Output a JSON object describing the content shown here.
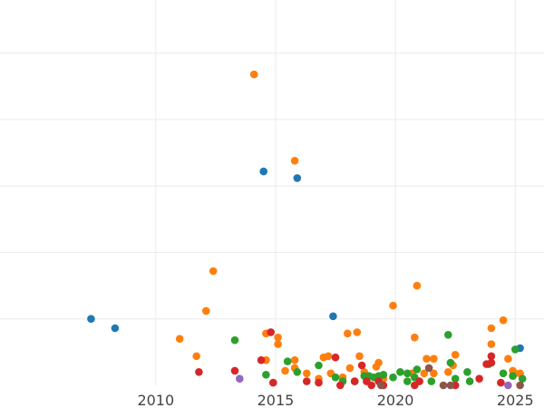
{
  "chart_data": {
    "type": "scatter",
    "title": "",
    "xlabel": "",
    "ylabel": "",
    "xlim": [
      2003.5,
      2026.2
    ],
    "ylim": [
      0,
      29
    ],
    "x_ticks": [
      2010,
      2015,
      2020,
      2025
    ],
    "x_tick_labels": [
      "2010",
      "2015",
      "2020",
      "2025"
    ],
    "y_gridlines": [
      5,
      10,
      15,
      20,
      25
    ],
    "grid": true,
    "legend": "none",
    "series": [
      {
        "color": "#1f77b4",
        "points": [
          [
            2007.3,
            5.0
          ],
          [
            2008.3,
            4.3
          ],
          [
            2014.5,
            16.1
          ],
          [
            2015.9,
            15.6
          ],
          [
            2017.4,
            5.2
          ],
          [
            2025.2,
            2.8
          ]
        ]
      },
      {
        "color": "#ff7f0e",
        "points": [
          [
            2011.0,
            3.5
          ],
          [
            2011.7,
            2.2
          ],
          [
            2012.1,
            5.6
          ],
          [
            2012.4,
            8.6
          ],
          [
            2014.1,
            23.4
          ],
          [
            2014.6,
            3.9
          ],
          [
            2014.6,
            1.9
          ],
          [
            2015.1,
            3.1
          ],
          [
            2015.1,
            3.6
          ],
          [
            2015.4,
            1.1
          ],
          [
            2015.8,
            1.9
          ],
          [
            2015.8,
            1.3
          ],
          [
            2015.8,
            16.9
          ],
          [
            2016.3,
            0.9
          ],
          [
            2016.8,
            0.5
          ],
          [
            2017.0,
            2.1
          ],
          [
            2017.2,
            2.2
          ],
          [
            2017.3,
            0.9
          ],
          [
            2017.8,
            0.6
          ],
          [
            2018.0,
            3.9
          ],
          [
            2018.1,
            1.3
          ],
          [
            2018.4,
            4.0
          ],
          [
            2018.5,
            2.2
          ],
          [
            2018.7,
            1.0
          ],
          [
            2019.2,
            1.4
          ],
          [
            2019.3,
            1.7
          ],
          [
            2019.5,
            0.5
          ],
          [
            2019.9,
            6.0
          ],
          [
            2020.7,
            0.9
          ],
          [
            2020.8,
            3.6
          ],
          [
            2020.9,
            7.5
          ],
          [
            2021.2,
            0.9
          ],
          [
            2021.3,
            2.0
          ],
          [
            2021.6,
            2.0
          ],
          [
            2021.6,
            0.9
          ],
          [
            2022.2,
            1.0
          ],
          [
            2022.4,
            1.5
          ],
          [
            2022.5,
            2.3
          ],
          [
            2024.0,
            4.3
          ],
          [
            2024.0,
            3.1
          ],
          [
            2024.5,
            4.9
          ],
          [
            2024.7,
            2.0
          ],
          [
            2024.9,
            1.1
          ],
          [
            2025.0,
            0.9
          ],
          [
            2025.2,
            0.9
          ]
        ]
      },
      {
        "color": "#2ca02c",
        "points": [
          [
            2013.3,
            3.4
          ],
          [
            2014.6,
            0.8
          ],
          [
            2015.5,
            1.8
          ],
          [
            2015.9,
            1.0
          ],
          [
            2016.8,
            1.5
          ],
          [
            2017.5,
            0.6
          ],
          [
            2017.8,
            0.3
          ],
          [
            2018.3,
            0.3
          ],
          [
            2018.7,
            0.7
          ],
          [
            2018.9,
            0.7
          ],
          [
            2019.1,
            0.6
          ],
          [
            2019.3,
            0.7
          ],
          [
            2019.5,
            0.8
          ],
          [
            2019.9,
            0.6
          ],
          [
            2020.2,
            1.0
          ],
          [
            2020.5,
            0.3
          ],
          [
            2020.5,
            0.9
          ],
          [
            2020.8,
            0.6
          ],
          [
            2020.9,
            1.2
          ],
          [
            2021.5,
            0.3
          ],
          [
            2022.2,
            3.8
          ],
          [
            2022.3,
            1.7
          ],
          [
            2022.5,
            0.5
          ],
          [
            2023.0,
            1.0
          ],
          [
            2023.1,
            0.3
          ],
          [
            2023.9,
            1.6
          ],
          [
            2024.5,
            0.9
          ],
          [
            2024.9,
            0.7
          ],
          [
            2025.0,
            2.7
          ],
          [
            2025.3,
            0.5
          ]
        ]
      },
      {
        "color": "#d62728",
        "points": [
          [
            2011.8,
            1.0
          ],
          [
            2013.3,
            1.1
          ],
          [
            2014.4,
            1.9
          ],
          [
            2014.8,
            4.0
          ],
          [
            2014.9,
            0.2
          ],
          [
            2016.3,
            0.3
          ],
          [
            2016.8,
            0.2
          ],
          [
            2017.5,
            2.1
          ],
          [
            2017.7,
            0.0
          ],
          [
            2018.3,
            0.3
          ],
          [
            2018.6,
            1.5
          ],
          [
            2018.8,
            0.3
          ],
          [
            2019.0,
            0.0
          ],
          [
            2019.3,
            0.3
          ],
          [
            2019.5,
            0.0
          ],
          [
            2020.8,
            0.0
          ],
          [
            2021.0,
            0.3
          ],
          [
            2022.5,
            0.0
          ],
          [
            2023.5,
            0.5
          ],
          [
            2023.8,
            1.6
          ],
          [
            2024.0,
            2.2
          ],
          [
            2024.0,
            1.7
          ],
          [
            2024.4,
            0.2
          ]
        ]
      },
      {
        "color": "#9467bd",
        "points": [
          [
            2013.5,
            0.5
          ],
          [
            2024.7,
            0.0
          ]
        ]
      },
      {
        "color": "#8c564b",
        "points": [
          [
            2019.4,
            0.0
          ],
          [
            2021.4,
            1.3
          ],
          [
            2022.0,
            0.0
          ],
          [
            2022.3,
            0.0
          ],
          [
            2025.2,
            0.0
          ]
        ]
      }
    ]
  }
}
